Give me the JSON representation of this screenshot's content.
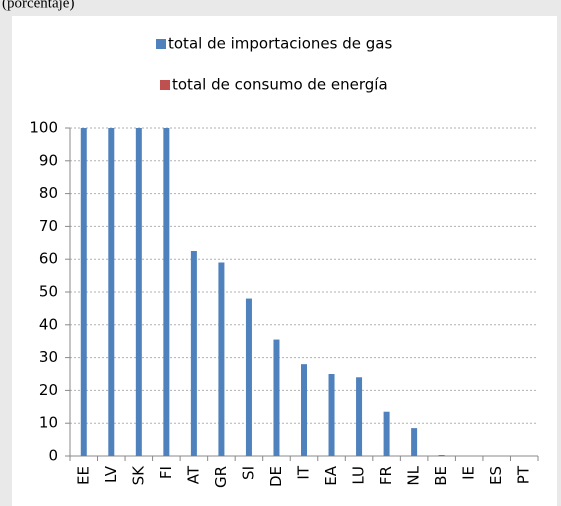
{
  "chart_data": {
    "type": "bar",
    "subtitle": "(porcentaje)",
    "categories": [
      "EE",
      "LV",
      "SK",
      "FI",
      "AT",
      "GR",
      "SI",
      "DE",
      "IT",
      "EA",
      "LU",
      "FR",
      "NL",
      "BE",
      "IE",
      "ES",
      "PT"
    ],
    "series": [
      {
        "name": "total de importaciones de gas",
        "color": "#4f81bd",
        "values": [
          100,
          100,
          100,
          100,
          62.5,
          59,
          48,
          35.5,
          28,
          25,
          24,
          13.5,
          8.5,
          0.3,
          0,
          0,
          0
        ]
      },
      {
        "name": "total de consumo de energía",
        "color": "#c0504d",
        "values": [
          null,
          null,
          null,
          null,
          null,
          null,
          null,
          null,
          null,
          null,
          null,
          null,
          null,
          null,
          null,
          null,
          null
        ]
      }
    ],
    "ylim": [
      0,
      100
    ],
    "yticks": [
      0,
      10,
      20,
      30,
      40,
      50,
      60,
      70,
      80,
      90,
      100
    ],
    "grid": true
  }
}
